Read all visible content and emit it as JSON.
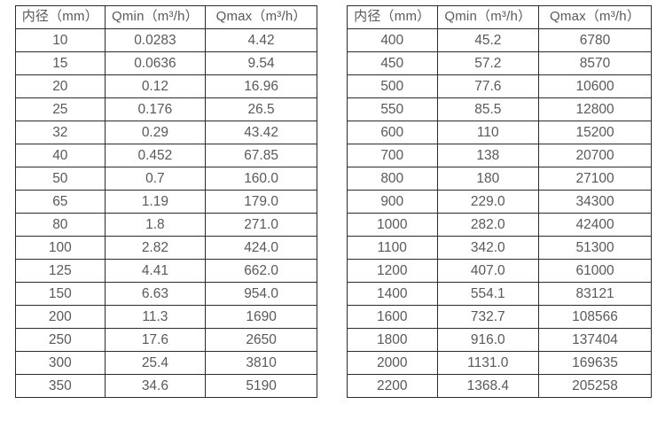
{
  "page": {
    "background_color": "#ffffff",
    "text_color": "#595959",
    "border_color": "#2b2b2b"
  },
  "tables": [
    {
      "name": "flow-table-small-diameters",
      "headers": [
        "内径（mm）",
        "Qmin（m³/h）",
        "Qmax（m³/h）"
      ],
      "rows": [
        [
          "10",
          "0.0283",
          "4.42"
        ],
        [
          "15",
          "0.0636",
          "9.54"
        ],
        [
          "20",
          "0.12",
          "16.96"
        ],
        [
          "25",
          "0.176",
          "26.5"
        ],
        [
          "32",
          "0.29",
          "43.42"
        ],
        [
          "40",
          "0.452",
          "67.85"
        ],
        [
          "50",
          "0.7",
          "160.0"
        ],
        [
          "65",
          "1.19",
          "179.0"
        ],
        [
          "80",
          "1.8",
          "271.0"
        ],
        [
          "100",
          "2.82",
          "424.0"
        ],
        [
          "125",
          "4.41",
          "662.0"
        ],
        [
          "150",
          "6.63",
          "954.0"
        ],
        [
          "200",
          "11.3",
          "1690"
        ],
        [
          "250",
          "17.6",
          "2650"
        ],
        [
          "300",
          "25.4",
          "3810"
        ],
        [
          "350",
          "34.6",
          "5190"
        ]
      ]
    },
    {
      "name": "flow-table-large-diameters",
      "headers": [
        "内径（mm）",
        "Qmin（m³/h）",
        "Qmax（m³/h）"
      ],
      "rows": [
        [
          "400",
          "45.2",
          "6780"
        ],
        [
          "450",
          "57.2",
          "8570"
        ],
        [
          "500",
          "77.6",
          "10600"
        ],
        [
          "550",
          "85.5",
          "12800"
        ],
        [
          "600",
          "110",
          "15200"
        ],
        [
          "700",
          "138",
          "20700"
        ],
        [
          "800",
          "180",
          "27100"
        ],
        [
          "900",
          "229.0",
          "34300"
        ],
        [
          "1000",
          "282.0",
          "42400"
        ],
        [
          "1100",
          "342.0",
          "51300"
        ],
        [
          "1200",
          "407.0",
          "61000"
        ],
        [
          "1400",
          "554.1",
          "83121"
        ],
        [
          "1600",
          "732.7",
          "108566"
        ],
        [
          "1800",
          "916.0",
          "137404"
        ],
        [
          "2000",
          "1131.0",
          "169635"
        ],
        [
          "2200",
          "1368.4",
          "205258"
        ]
      ]
    }
  ]
}
